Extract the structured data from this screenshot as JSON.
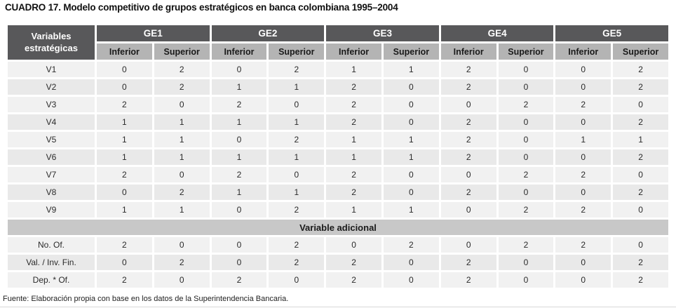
{
  "title": "CUADRO 17. Modelo competitivo de grupos estratégicos en banca colombiana 1995–2004",
  "table": {
    "corner_header": "Variables estratégicas",
    "groups": [
      "GE1",
      "GE2",
      "GE3",
      "GE4",
      "GE5"
    ],
    "sub_headers": [
      "Inferior",
      "Superior"
    ],
    "rows": [
      {
        "label": "V1",
        "values": [
          0,
          2,
          0,
          2,
          1,
          1,
          2,
          0,
          0,
          2
        ]
      },
      {
        "label": "V2",
        "values": [
          0,
          2,
          1,
          1,
          2,
          0,
          2,
          0,
          0,
          2
        ]
      },
      {
        "label": "V3",
        "values": [
          2,
          0,
          2,
          0,
          2,
          0,
          0,
          2,
          2,
          0
        ]
      },
      {
        "label": "V4",
        "values": [
          1,
          1,
          1,
          1,
          2,
          0,
          2,
          0,
          0,
          2
        ]
      },
      {
        "label": "V5",
        "values": [
          1,
          1,
          0,
          2,
          1,
          1,
          2,
          0,
          1,
          1
        ]
      },
      {
        "label": "V6",
        "values": [
          1,
          1,
          1,
          1,
          1,
          1,
          2,
          0,
          0,
          2
        ]
      },
      {
        "label": "V7",
        "values": [
          2,
          0,
          2,
          0,
          2,
          0,
          0,
          2,
          2,
          0
        ]
      },
      {
        "label": "V8",
        "values": [
          0,
          2,
          1,
          1,
          2,
          0,
          2,
          0,
          0,
          2
        ]
      },
      {
        "label": "V9",
        "values": [
          1,
          1,
          0,
          2,
          1,
          1,
          0,
          2,
          2,
          0
        ]
      }
    ],
    "section_header": "Variable adicional",
    "additional_rows": [
      {
        "label": "No. Of.",
        "values": [
          2,
          0,
          0,
          2,
          0,
          2,
          0,
          2,
          2,
          0
        ]
      },
      {
        "label": "Val. / Inv. Fin.",
        "values": [
          0,
          2,
          0,
          2,
          2,
          0,
          2,
          0,
          0,
          2
        ]
      },
      {
        "label": "Dep. * Of.",
        "values": [
          2,
          0,
          2,
          0,
          2,
          0,
          2,
          0,
          0,
          2
        ]
      }
    ]
  },
  "footer": "Fuente: Elaboración propia con base en los datos de la Superintendencia Bancaria.",
  "colors": {
    "header_bg": "#58585a",
    "header_text": "#ffffff",
    "subheader_bg": "#b4b4b4",
    "section_bg": "#c8c8c8",
    "row_odd_bg": "#f1f1f1",
    "row_even_bg": "#e9e9e9"
  }
}
